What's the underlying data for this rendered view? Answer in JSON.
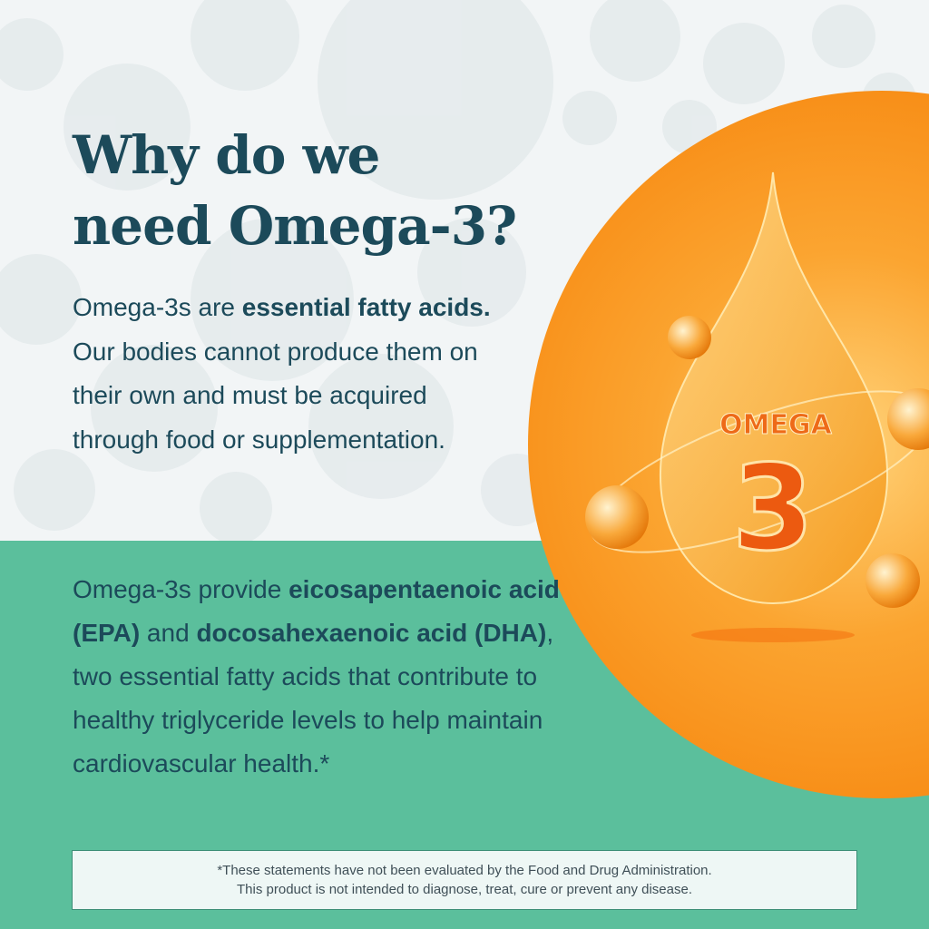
{
  "title": {
    "line1": "Why do we",
    "line2": "need Omega-3?"
  },
  "intro": {
    "t1": "Omega-3s are ",
    "b1": "essential fatty acids.",
    "t2": " Our bodies cannot produce them on their own and must be acquired through food or supplementation."
  },
  "benefits": {
    "t1": "Omega-3s provide ",
    "b1": "eicosapentaenoic acid (EPA)",
    "t2": " and ",
    "b2": "docosahexaenoic acid (DHA)",
    "t3": ", two essential fatty acids that contribute to healthy triglyceride levels to help maintain cardiovascular health.*"
  },
  "disclaimer": {
    "line1": "*These statements have not been evaluated by the Food and Drug Administration.",
    "line2": "This product is not intended to diagnose, treat, cure or prevent any disease."
  },
  "illustration": {
    "label": "OMEGA",
    "number": "3"
  },
  "colors": {
    "background": "#f2f5f6",
    "green": "#5bbf9c",
    "orange": "#f7860e",
    "text": "#1c4a5a"
  }
}
